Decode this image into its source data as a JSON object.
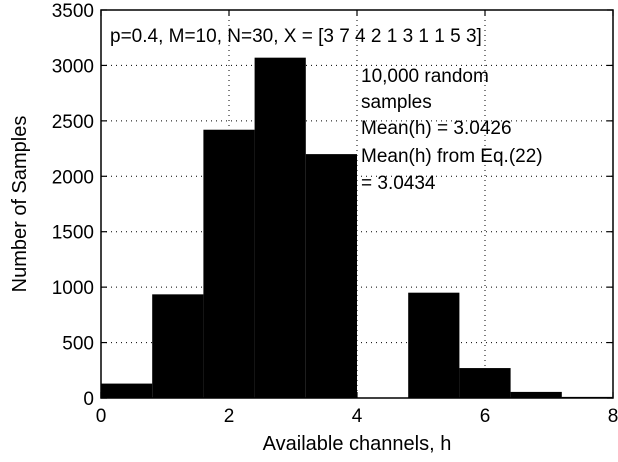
{
  "chart_data": {
    "type": "bar",
    "title": "",
    "xlabel": "Available channels, h",
    "ylabel": "Number of Samples",
    "xlim": [
      0,
      8
    ],
    "ylim": [
      0,
      3500
    ],
    "xticks": [
      "0",
      "2",
      "4",
      "6",
      "8"
    ],
    "yticks": [
      "0",
      "500",
      "1000",
      "1500",
      "2000",
      "2500",
      "3000",
      "3500"
    ],
    "grid": true,
    "bins": [
      {
        "x0": 0.0,
        "x1": 0.8,
        "value": 130
      },
      {
        "x0": 0.8,
        "x1": 1.6,
        "value": 935
      },
      {
        "x0": 1.6,
        "x1": 2.4,
        "value": 2420
      },
      {
        "x0": 2.4,
        "x1": 3.2,
        "value": 3070
      },
      {
        "x0": 3.2,
        "x1": 4.0,
        "value": 2200
      },
      {
        "x0": 4.0,
        "x1": 4.8,
        "value": 0
      },
      {
        "x0": 4.8,
        "x1": 5.6,
        "value": 950
      },
      {
        "x0": 5.6,
        "x1": 6.4,
        "value": 270
      },
      {
        "x0": 6.4,
        "x1": 7.2,
        "value": 55
      },
      {
        "x0": 7.2,
        "x1": 8.0,
        "value": 10
      }
    ],
    "bar_color": "#000000",
    "annotations": {
      "params": "p=0.4, M=10, N=30, X = [3 7 4 2 1 3 1 1 5 3]",
      "lines": [
        "10,000 random",
        "samples",
        "Mean(h) = 3.0426",
        "Mean(h) from Eq.(22)",
        "= 3.0434"
      ]
    }
  }
}
